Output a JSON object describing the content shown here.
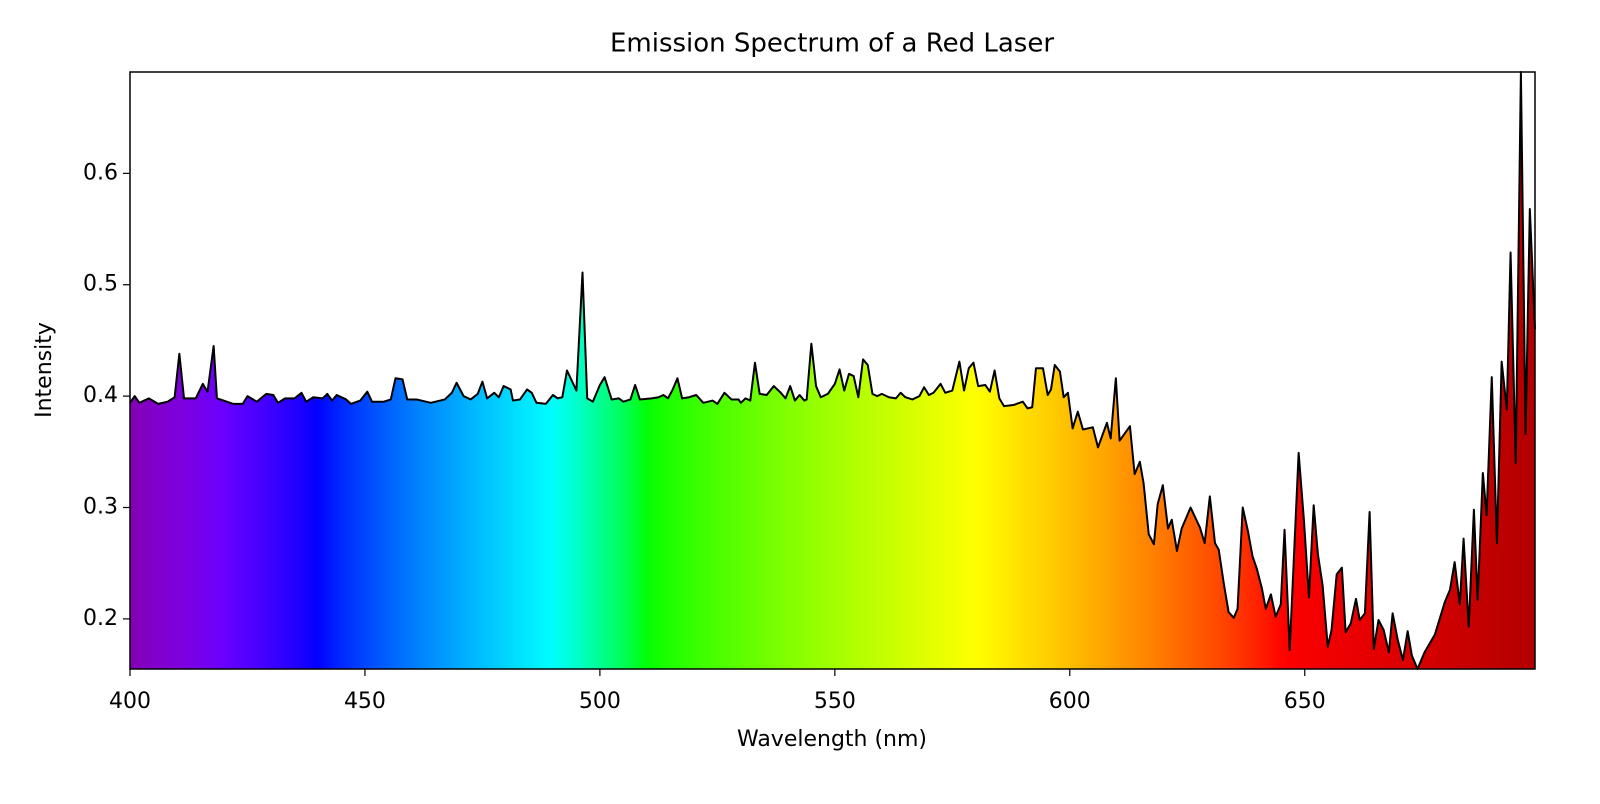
{
  "chart_data": {
    "type": "area",
    "title": "Emission Spectrum of a Red Laser",
    "xlabel": "Wavelength (nm)",
    "ylabel": "Intensity",
    "xlim": [
      400,
      699
    ],
    "ylim": [
      0.155,
      0.691
    ],
    "xticks": [
      400,
      450,
      500,
      550,
      600,
      650
    ],
    "yticks": [
      0.2,
      0.3,
      0.4,
      0.5,
      0.6
    ],
    "line_color": "#000000",
    "x": [
      400,
      401,
      402,
      404,
      406,
      408,
      409.5,
      410.5,
      411.5,
      414,
      415.5,
      416.5,
      417.8,
      418.5,
      422,
      424,
      425,
      427,
      429,
      430.5,
      431.5,
      433,
      435,
      436.5,
      437.5,
      439,
      441,
      442,
      443,
      444,
      446,
      447,
      449,
      450.5,
      451.5,
      454,
      455.5,
      456.5,
      458,
      459,
      461,
      464,
      467,
      468.5,
      469.5,
      471,
      472.5,
      474,
      475,
      476,
      477.5,
      478.5,
      479.5,
      481,
      481.5,
      483,
      484.5,
      485.5,
      486.5,
      488.5,
      490,
      491,
      492,
      493,
      495,
      496.3,
      497.3,
      498.5,
      500,
      501,
      502.5,
      504,
      505,
      506.5,
      507.5,
      508.5,
      511,
      512.5,
      513.5,
      514.5,
      515.5,
      516.5,
      517.5,
      519,
      520.5,
      522,
      524,
      525,
      526.5,
      528,
      529.5,
      530,
      531,
      532,
      533,
      534,
      535.5,
      537,
      538.5,
      539.5,
      540.5,
      541.5,
      542.5,
      543.5,
      544,
      545,
      546,
      547,
      548.5,
      550,
      551,
      552,
      553,
      554,
      555,
      556,
      557,
      558,
      559,
      560,
      561.5,
      563,
      564,
      565,
      566.5,
      568,
      569,
      570,
      571,
      572.5,
      573.5,
      575,
      576.5,
      577.5,
      578.5,
      579.5,
      580.5,
      582,
      583,
      584,
      585,
      586,
      588,
      590,
      591,
      592,
      592.8,
      594.3,
      595.3,
      596,
      596.8,
      597.9,
      598.7,
      599.6,
      600.6,
      601.7,
      602.8,
      604.9,
      606,
      607.9,
      608.7,
      609.8,
      610.6,
      612.8,
      613.8,
      614.9,
      615.7,
      616.8,
      617.9,
      618.7,
      619.8,
      620.9,
      621.7,
      622.8,
      623.8,
      625.7,
      627.7,
      628.7,
      629.8,
      630.9,
      631.7,
      632.8,
      633.8,
      634.9,
      635.7,
      636.8,
      637.9,
      638.9,
      639.8,
      640.9,
      641.7,
      642.8,
      643.8,
      644.9,
      645.7,
      646.8,
      648.7,
      649.8,
      650.9,
      651.9,
      652.8,
      653.8,
      654.9,
      655.7,
      656.8,
      657.9,
      658.7,
      659.8,
      660.9,
      661.7,
      662.8,
      663.8,
      664.7,
      665.7,
      666.8,
      667.9,
      668.7,
      669.8,
      670.9,
      671.9,
      672.8,
      674,
      675.5,
      677.7,
      679.8,
      680.9,
      681.9,
      683,
      683.8,
      684.9,
      686,
      686.8,
      687.9,
      688.7,
      689.8,
      690.9,
      691.9,
      693,
      693.8,
      694.9,
      696,
      697,
      697.9,
      699
    ],
    "values": [
      0.394,
      0.4,
      0.394,
      0.398,
      0.393,
      0.395,
      0.399,
      0.438,
      0.398,
      0.398,
      0.411,
      0.404,
      0.445,
      0.398,
      0.393,
      0.393,
      0.4,
      0.395,
      0.402,
      0.401,
      0.394,
      0.398,
      0.398,
      0.403,
      0.395,
      0.399,
      0.398,
      0.402,
      0.396,
      0.401,
      0.397,
      0.393,
      0.396,
      0.404,
      0.395,
      0.395,
      0.397,
      0.416,
      0.415,
      0.397,
      0.397,
      0.394,
      0.397,
      0.403,
      0.412,
      0.4,
      0.397,
      0.402,
      0.413,
      0.398,
      0.403,
      0.399,
      0.409,
      0.406,
      0.396,
      0.397,
      0.406,
      0.403,
      0.394,
      0.393,
      0.401,
      0.398,
      0.399,
      0.423,
      0.405,
      0.511,
      0.398,
      0.395,
      0.41,
      0.417,
      0.397,
      0.398,
      0.395,
      0.397,
      0.41,
      0.397,
      0.398,
      0.399,
      0.401,
      0.398,
      0.406,
      0.416,
      0.398,
      0.399,
      0.401,
      0.394,
      0.396,
      0.393,
      0.403,
      0.397,
      0.397,
      0.394,
      0.398,
      0.396,
      0.43,
      0.402,
      0.401,
      0.409,
      0.403,
      0.398,
      0.409,
      0.396,
      0.401,
      0.396,
      0.397,
      0.447,
      0.409,
      0.399,
      0.402,
      0.411,
      0.424,
      0.405,
      0.42,
      0.418,
      0.399,
      0.433,
      0.428,
      0.402,
      0.4,
      0.402,
      0.399,
      0.398,
      0.403,
      0.399,
      0.397,
      0.4,
      0.408,
      0.401,
      0.403,
      0.411,
      0.403,
      0.405,
      0.431,
      0.405,
      0.425,
      0.43,
      0.409,
      0.41,
      0.404,
      0.423,
      0.398,
      0.391,
      0.392,
      0.395,
      0.389,
      0.39,
      0.425,
      0.425,
      0.401,
      0.406,
      0.428,
      0.422,
      0.399,
      0.403,
      0.371,
      0.386,
      0.37,
      0.372,
      0.354,
      0.376,
      0.362,
      0.416,
      0.36,
      0.373,
      0.33,
      0.341,
      0.322,
      0.276,
      0.267,
      0.303,
      0.32,
      0.281,
      0.289,
      0.261,
      0.281,
      0.3,
      0.282,
      0.268,
      0.31,
      0.268,
      0.262,
      0.231,
      0.206,
      0.201,
      0.209,
      0.3,
      0.279,
      0.256,
      0.245,
      0.227,
      0.209,
      0.222,
      0.202,
      0.213,
      0.28,
      0.172,
      0.349,
      0.29,
      0.219,
      0.302,
      0.258,
      0.23,
      0.175,
      0.19,
      0.24,
      0.246,
      0.188,
      0.196,
      0.218,
      0.199,
      0.205,
      0.296,
      0.173,
      0.199,
      0.19,
      0.17,
      0.205,
      0.181,
      0.163,
      0.189,
      0.167,
      0.155,
      0.17,
      0.186,
      0.215,
      0.226,
      0.251,
      0.213,
      0.272,
      0.193,
      0.298,
      0.217,
      0.331,
      0.293,
      0.417,
      0.268,
      0.431,
      0.388,
      0.529,
      0.34,
      0.691,
      0.366,
      0.568,
      0.46
    ]
  }
}
